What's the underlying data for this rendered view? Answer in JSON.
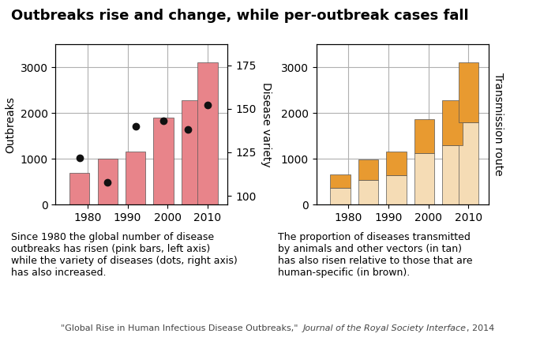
{
  "title": "Outbreaks rise and change, while per-outbreak cases fall",
  "chart_data": [
    {
      "type": "bar",
      "x": [
        1978,
        1985,
        1992,
        1999,
        2006,
        2010
      ],
      "series": [
        {
          "type": "bar",
          "color": "#e8848a",
          "values": [
            700,
            1000,
            1150,
            1900,
            2280,
            3100
          ]
        },
        {
          "type": "scatter",
          "axis": "y2",
          "color": "#111111",
          "marker": "circle",
          "x": [
            1978,
            1985,
            1992,
            1999,
            2005,
            2010
          ],
          "values": [
            122,
            108,
            140,
            143,
            138,
            152
          ]
        }
      ],
      "ylabel": "Outbreaks",
      "y2label": "Disease variety",
      "xlim": [
        1972,
        2015
      ],
      "xticks": [
        1980,
        1990,
        2000,
        2010
      ],
      "ylim": [
        0,
        3500
      ],
      "yticks": [
        0,
        1000,
        2000,
        3000
      ],
      "y2lim": [
        95,
        187
      ],
      "y2ticks": [
        100,
        125,
        150,
        175
      ],
      "grid": true,
      "caption": "Since 1980 the global number of disease\noutbreaks has risen (pink bars, left axis)\nwhile the variety of diseases (dots, right axis)\nhas also increased."
    },
    {
      "type": "bar",
      "stacked": true,
      "x": [
        1978,
        1985,
        1992,
        1999,
        2006,
        2010
      ],
      "series": [
        {
          "type": "bar",
          "color": "#f5dcb5",
          "values": [
            360,
            530,
            640,
            1120,
            1300,
            1800
          ]
        },
        {
          "type": "bar",
          "color": "#e89a30",
          "values": [
            290,
            450,
            510,
            750,
            980,
            1300
          ]
        }
      ],
      "y2label": "Transmission route",
      "xlim": [
        1972,
        2015
      ],
      "xticks": [
        1980,
        1990,
        2000,
        2010
      ],
      "ylim": [
        0,
        3500
      ],
      "yticks": [
        0,
        1000,
        2000,
        3000
      ],
      "grid": true,
      "caption": "The proportion of diseases transmitted\nby animals and other vectors (in tan)\nhas also risen relative to those that are\nhuman-specific (in brown)."
    }
  ],
  "source": [
    "\"Global Rise in Human Infectious Disease Outbreaks,\" ",
    "Journal of the Royal Society Interface",
    ", 2014"
  ]
}
